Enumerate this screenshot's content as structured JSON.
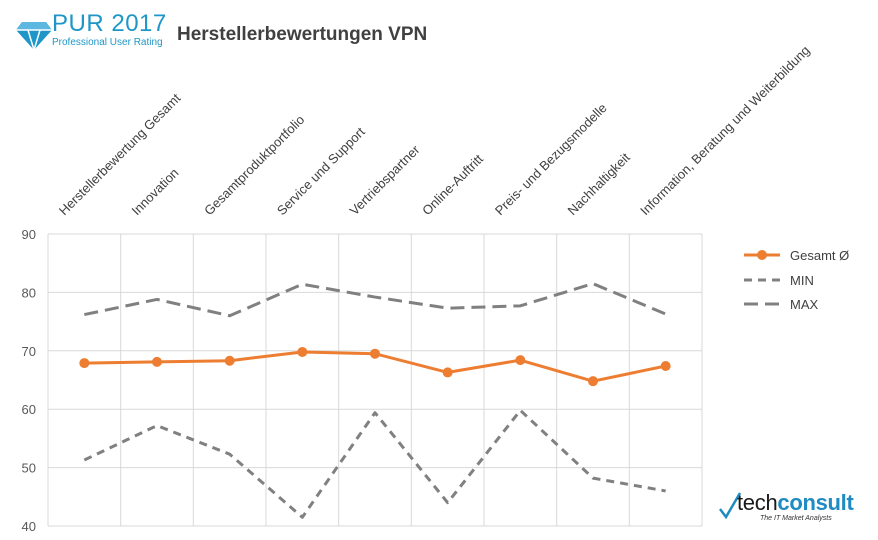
{
  "header": {
    "logo_title": "PUR 2017",
    "logo_subtitle": "Professional User Rating",
    "title": "Herstellerbewertungen VPN"
  },
  "footer_logo": {
    "prefix": "tech",
    "brand": "consult",
    "tagline": "The IT Market Analysts"
  },
  "colors": {
    "gesamt": "#ed7d31",
    "minmax": "#808080",
    "grid": "#d9d9d9",
    "brand_blue": "#1e96c8"
  },
  "chart_data": {
    "type": "line",
    "categories": [
      "Herstellerbewertung Gesamt",
      "Innovation",
      "Gesamtproduktportfolio",
      "Service und Support",
      "Vertriebspartner",
      "Online-Auftritt",
      "Preis- und Bezugsmodelle",
      "Nachhaltigkeit",
      "Information, Beratung und Weiterbildung"
    ],
    "series": [
      {
        "name": "Gesamt Ø",
        "style": "solid-markers",
        "values": [
          67.9,
          68.1,
          68.3,
          69.8,
          69.5,
          66.3,
          68.4,
          64.8,
          67.4
        ]
      },
      {
        "name": "MIN",
        "style": "dashed",
        "values": [
          51.3,
          57.2,
          52.3,
          41.5,
          59.4,
          44.0,
          59.8,
          48.2,
          46.0
        ]
      },
      {
        "name": "MAX",
        "style": "long-dash",
        "values": [
          76.2,
          78.8,
          76.0,
          81.4,
          79.2,
          77.3,
          77.7,
          81.5,
          76.3
        ]
      }
    ],
    "ylim": [
      40,
      90
    ],
    "yticks": [
      40,
      50,
      60,
      70,
      80,
      90
    ],
    "grid": true,
    "legend": "right"
  }
}
